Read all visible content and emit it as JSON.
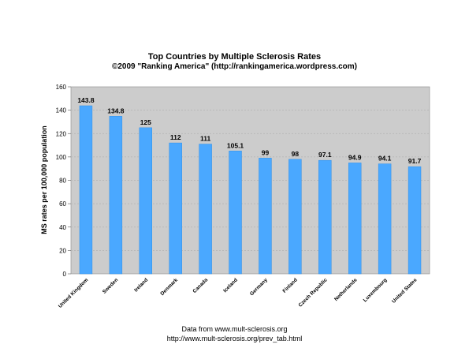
{
  "header": {
    "title": "Top Countries by Multiple Sclerosis Rates",
    "subtitle": "©2009 \"Ranking America\" (http://rankingamerica.wordpress.com)"
  },
  "footer": {
    "line1": "Data from www.mult-sclerosis.org",
    "line2": "http://www.mult-sclerosis.org/prev_tab.html"
  },
  "chart_data": {
    "type": "bar",
    "title": "Top Countries by Multiple Sclerosis Rates",
    "subtitle": "©2009 \"Ranking America\" (http://rankingamerica.wordpress.com)",
    "xlabel": "",
    "ylabel": "MS rates per 100,000 population",
    "ylim": [
      0,
      160
    ],
    "yticks": [
      0,
      20,
      40,
      60,
      80,
      100,
      120,
      140,
      160
    ],
    "grid": true,
    "categories": [
      "United Kingdom",
      "Sweden",
      "Ireland",
      "Denmark",
      "Canada",
      "Iceland",
      "Germany",
      "Finland",
      "Czech Republic",
      "Netherlands",
      "Luxembourg",
      "United States"
    ],
    "values": [
      143.8,
      134.8,
      125,
      112,
      111,
      105.1,
      99,
      98,
      97.1,
      94.9,
      94.1,
      91.7
    ],
    "data_labels": [
      "143.8",
      "134.8",
      "125",
      "112",
      "111",
      "105.1",
      "99",
      "98",
      "97.1",
      "94.9",
      "94.1",
      "91.7"
    ],
    "colors": {
      "bar": "#4aa8ff",
      "bar_edge": "#2f8fe8",
      "plot_bg": "#cccccc",
      "grid": "#b2b2b2"
    }
  }
}
